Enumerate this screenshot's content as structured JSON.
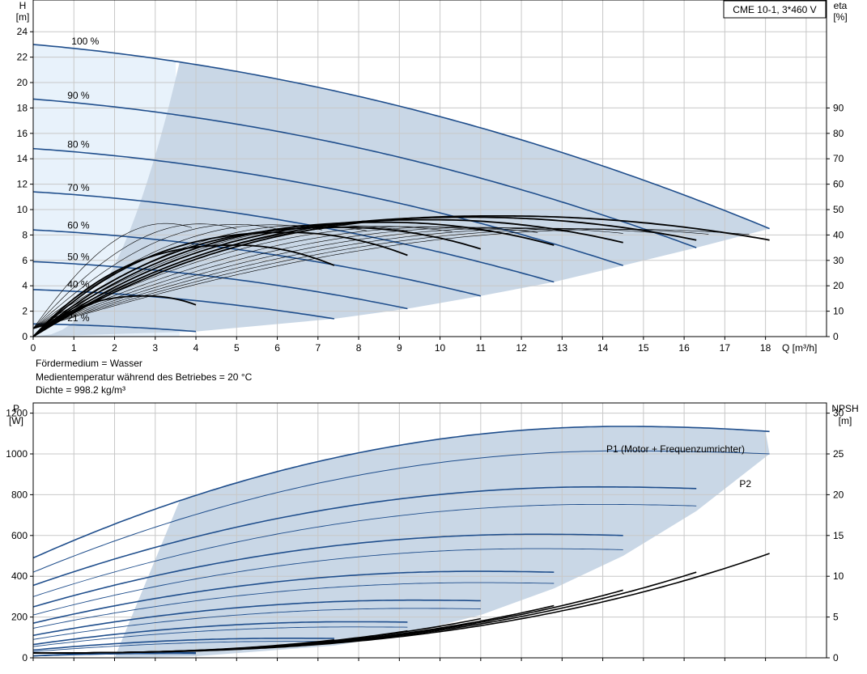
{
  "chart_data": [
    {
      "type": "line",
      "title": "CME 10-1, 3*460 V",
      "xlabel": "Q [m³/h]",
      "ylabel": [
        "H",
        "[m]"
      ],
      "y2label": [
        "eta",
        "[%]"
      ],
      "xlim": [
        0,
        19.5
      ],
      "ylim": [
        0,
        26.5
      ],
      "y2lim": [
        0,
        132.5
      ],
      "xticks": [
        0,
        1,
        2,
        3,
        4,
        5,
        6,
        7,
        8,
        9,
        10,
        11,
        12,
        13,
        14,
        15,
        16,
        17,
        18
      ],
      "yticks": [
        0,
        2,
        4,
        6,
        8,
        10,
        12,
        14,
        16,
        18,
        20,
        22,
        24
      ],
      "y2ticks": [
        0,
        10,
        20,
        30,
        40,
        50,
        60,
        70,
        80,
        90
      ],
      "grid": true,
      "colors": {
        "head": "#1f4e8c",
        "eta": "#000000",
        "region": "#c9d7e6",
        "region_light": "#e8f2fb"
      },
      "series": [
        {
          "name": "100 %",
          "speed": 1.0,
          "q_shut": 0,
          "h_shut": 23.0,
          "q_max": 18.1,
          "h_end": 8.5
        },
        {
          "name": "90 %",
          "speed": 0.9,
          "q_shut": 0,
          "h_shut": 18.7,
          "q_max": 16.3,
          "h_end": 7.0
        },
        {
          "name": "80 %",
          "speed": 0.8,
          "q_shut": 0,
          "h_shut": 14.8,
          "q_max": 14.5,
          "h_end": 5.6
        },
        {
          "name": "70 %",
          "speed": 0.7,
          "q_shut": 0,
          "h_shut": 11.4,
          "q_max": 12.8,
          "h_end": 4.3
        },
        {
          "name": "60 %",
          "speed": 0.6,
          "q_shut": 0,
          "h_shut": 8.4,
          "q_max": 11.0,
          "h_end": 3.2
        },
        {
          "name": "50 %",
          "speed": 0.5,
          "q_shut": 0,
          "h_shut": 5.9,
          "q_max": 9.2,
          "h_end": 2.2
        },
        {
          "name": "40 %",
          "speed": 0.4,
          "q_shut": 0,
          "h_shut": 3.7,
          "q_max": 7.4,
          "h_end": 1.4
        },
        {
          "name": "21 %",
          "speed": 0.21,
          "q_shut": 0,
          "h_shut": 1.0,
          "q_max": 4.0,
          "h_end": 0.4
        }
      ],
      "eta_curves": [
        {
          "q_max": 18.1,
          "q_peak": 11.5,
          "eta_peak": 47.5,
          "eta_end": 38
        },
        {
          "q_max": 16.3,
          "q_peak": 10.8,
          "eta_peak": 47,
          "eta_end": 38
        },
        {
          "q_max": 14.5,
          "q_peak": 9.8,
          "eta_peak": 46,
          "eta_end": 37
        },
        {
          "q_max": 12.8,
          "q_peak": 8.7,
          "eta_peak": 45,
          "eta_end": 36
        },
        {
          "q_max": 11.0,
          "q_peak": 7.6,
          "eta_peak": 43,
          "eta_end": 34.5
        },
        {
          "q_max": 9.2,
          "q_peak": 6.3,
          "eta_peak": 41,
          "eta_end": 32
        },
        {
          "q_max": 7.4,
          "q_peak": 5.0,
          "eta_peak": 36,
          "eta_end": 28
        },
        {
          "q_max": 4.0,
          "q_peak": 2.8,
          "eta_peak": 16,
          "eta_end": 12.5
        }
      ]
    },
    {
      "type": "line",
      "xlim": [
        0,
        19.5
      ],
      "ylabel": [
        "P",
        "[W]"
      ],
      "y2label": [
        "NPSH",
        "[m]"
      ],
      "ylim": [
        0,
        1250
      ],
      "y2lim": [
        0,
        31.25
      ],
      "yticks": [
        0,
        200,
        400,
        600,
        800,
        1000,
        1200
      ],
      "y2ticks": [
        0,
        5,
        10,
        15,
        20,
        25,
        30
      ],
      "grid": true,
      "colors": {
        "p1": "#1f4e8c",
        "p2": "#1f4e8c",
        "npsh": "#000000",
        "region": "#c9d7e6"
      },
      "series": [
        {
          "name": "P1 (Motor + Frequenzumrichter)",
          "q_max": 18.1,
          "p_0": 490,
          "p_peak": 1135,
          "q_peak": 14.5,
          "p_end": 1110
        },
        {
          "name": "P2",
          "q_max": 18.1,
          "p_0": 420,
          "p_peak": 1015,
          "q_peak": 14.5,
          "p_end": 1000
        }
      ],
      "power_curves_p1": [
        {
          "q_max": 16.3,
          "p_0": 355,
          "p_end": 830
        },
        {
          "q_max": 14.5,
          "p_0": 250,
          "p_end": 600
        },
        {
          "q_max": 12.8,
          "p_0": 170,
          "p_end": 420
        },
        {
          "q_max": 11.0,
          "p_0": 110,
          "p_end": 280
        },
        {
          "q_max": 9.2,
          "p_0": 65,
          "p_end": 175
        },
        {
          "q_max": 7.4,
          "p_0": 38,
          "p_end": 95
        },
        {
          "q_max": 4.0,
          "p_0": 10,
          "p_end": 25
        }
      ],
      "power_curves_p2": [
        {
          "q_max": 16.3,
          "p_0": 300,
          "p_end": 745
        },
        {
          "q_max": 14.5,
          "p_0": 210,
          "p_end": 530
        },
        {
          "q_max": 12.8,
          "p_0": 145,
          "p_end": 365
        },
        {
          "q_max": 11.0,
          "p_0": 90,
          "p_end": 240
        },
        {
          "q_max": 9.2,
          "p_0": 55,
          "p_end": 150
        },
        {
          "q_max": 7.4,
          "p_0": 30,
          "p_end": 80
        },
        {
          "q_max": 4.0,
          "p_0": 8,
          "p_end": 20
        }
      ],
      "npsh_curves": [
        {
          "q_max": 18.1,
          "npsh_end": 12.8
        },
        {
          "q_max": 16.3,
          "npsh_end": 10.5
        },
        {
          "q_max": 14.5,
          "npsh_end": 8.3
        },
        {
          "q_max": 12.8,
          "npsh_end": 6.4
        },
        {
          "q_max": 11.0,
          "npsh_end": 4.8
        },
        {
          "q_max": 9.2,
          "npsh_end": 3.3
        },
        {
          "q_max": 7.4,
          "npsh_end": 2.2
        },
        {
          "q_max": 4.0,
          "npsh_end": 0.9
        }
      ]
    }
  ],
  "notes": {
    "line1": "Fördermedium = Wasser",
    "line2": "Medientemperatur während des Betriebes = 20 °C",
    "line3": "Dichte = 998.2 kg/m³"
  }
}
